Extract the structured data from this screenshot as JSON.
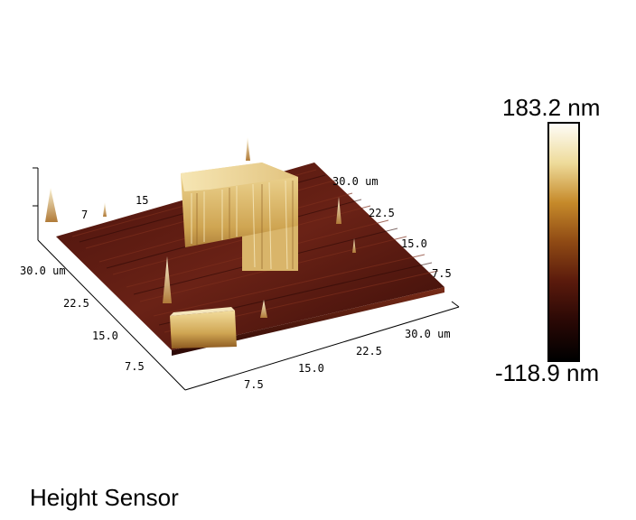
{
  "image": {
    "caption": "Height Sensor",
    "scale": {
      "max_label": "183.2 nm",
      "min_label": "-118.9 nm",
      "gradient_stops": [
        "#fefcf7",
        "#eedb9a",
        "#c68a2a",
        "#8f4a14",
        "#5a1a0c",
        "#2a0805",
        "#000000"
      ]
    },
    "axes": {
      "front_ticks": [
        "7.5",
        "15.0",
        "22.5",
        "30.0 um"
      ],
      "left_ticks": [
        "30.0 um",
        "22.5",
        "15.0",
        "7.5"
      ],
      "back_right_ticks": [
        "30.0 um",
        "22.5",
        "15.0",
        "7.5"
      ],
      "back_left_ticks": [
        "15",
        "7"
      ]
    },
    "colors": {
      "substrate": "#5c1a12",
      "substrate_dark": "#3a0d08",
      "plateau_top": "#e9d08a",
      "plateau_side": "#c79a4a",
      "spike": "#efe3b0"
    }
  }
}
